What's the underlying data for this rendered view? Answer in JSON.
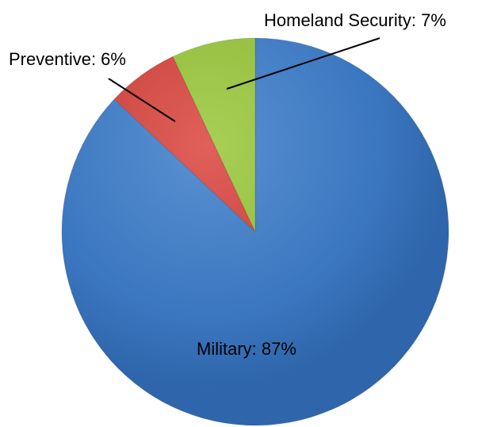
{
  "chart_data": {
    "type": "pie",
    "title": "",
    "start_angle_deg": 0,
    "direction": "clockwise",
    "slices": [
      {
        "name": "Military",
        "value": 87,
        "label": "Military: 87%",
        "color": "#3b77c0",
        "color_light": "#5a91d1",
        "color_dark": "#2f66ab",
        "label_mode": "inside"
      },
      {
        "name": "Preventive",
        "value": 6,
        "label": "Preventive: 6%",
        "color": "#c9403a",
        "color_light": "#e0605a",
        "color_dark": "#b3332e",
        "label_mode": "outside"
      },
      {
        "name": "Homeland Security",
        "value": 7,
        "label": "Homeland Security: 7%",
        "color": "#90bb3a",
        "color_light": "#a8cf56",
        "color_dark": "#7ea832",
        "label_mode": "outside"
      }
    ]
  }
}
